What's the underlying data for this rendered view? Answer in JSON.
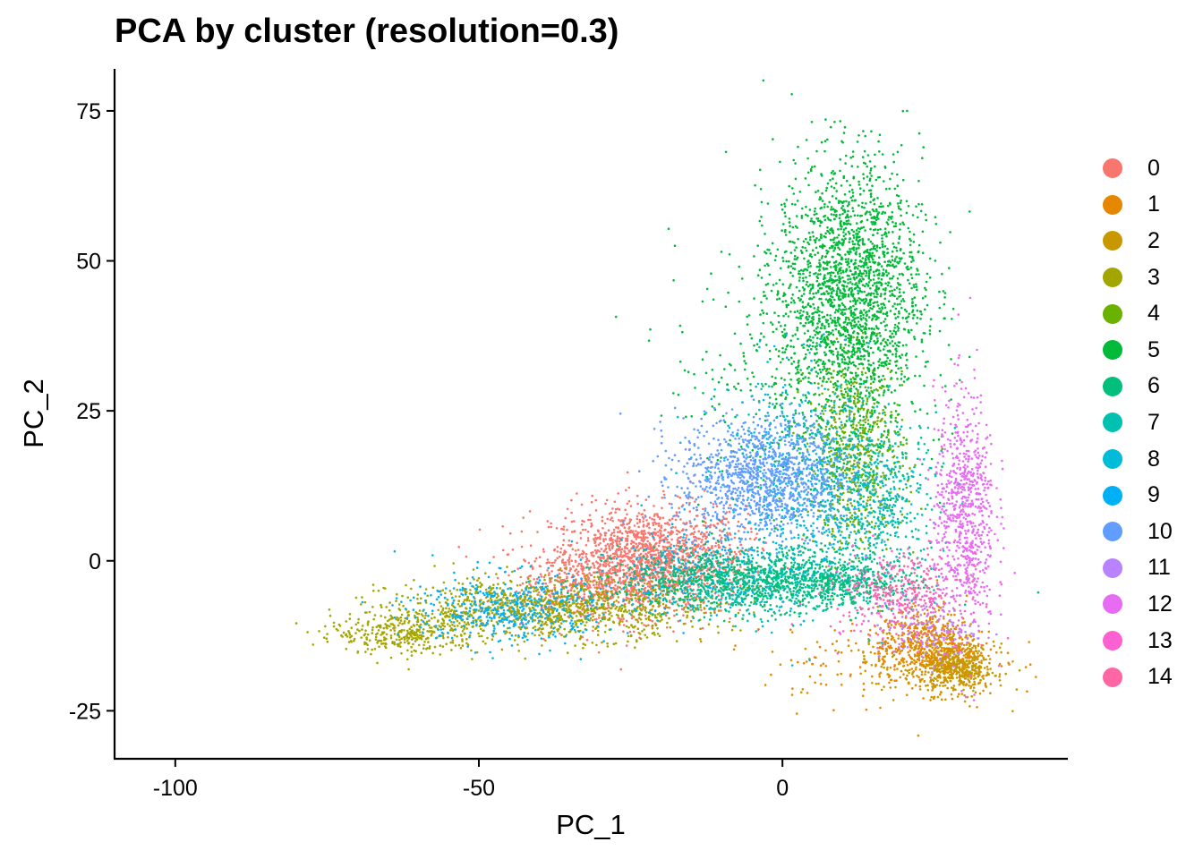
{
  "chart_data": {
    "type": "scatter",
    "title": "PCA by cluster (resolution=0.3)",
    "xlabel": "PC_1",
    "ylabel": "PC_2",
    "xlim": [
      -110,
      47
    ],
    "ylim": [
      -33,
      82
    ],
    "x_ticks": [
      -100,
      -50,
      0
    ],
    "x_tick_labels": [
      "-100",
      "-50",
      "0"
    ],
    "y_ticks": [
      -25,
      0,
      25,
      50,
      75
    ],
    "y_tick_labels": [
      "-25",
      "0",
      "25",
      "50",
      "75"
    ],
    "grid": false,
    "legend_position": "right",
    "series": [
      {
        "name": "0",
        "color": "#F8766D",
        "clusters": [
          {
            "center": [
              -22,
              0
            ],
            "sd": [
              8,
              4.5
            ],
            "n": 1700
          },
          {
            "center": [
              -33,
              -4
            ],
            "sd": [
              6,
              3
            ],
            "n": 300
          }
        ]
      },
      {
        "name": "1",
        "color": "#E58700",
        "clusters": [
          {
            "center": [
              24,
              -14
            ],
            "sd": [
              4,
              3
            ],
            "n": 500
          },
          {
            "center": [
              16,
              -17
            ],
            "sd": [
              10,
              4
            ],
            "n": 150
          }
        ]
      },
      {
        "name": "2",
        "color": "#C99800",
        "clusters": [
          {
            "center": [
              29,
              -18
            ],
            "sd": [
              3,
              2
            ],
            "n": 500
          },
          {
            "center": [
              20,
              -16
            ],
            "sd": [
              7,
              3
            ],
            "n": 120
          }
        ]
      },
      {
        "name": "3",
        "color": "#A3A500",
        "clusters": [
          {
            "center": [
              -38,
              -8
            ],
            "sd": [
              13,
              2.5
            ],
            "n": 1100
          },
          {
            "center": [
              -62,
              -12
            ],
            "sd": [
              6,
              1.8
            ],
            "n": 350
          }
        ]
      },
      {
        "name": "4",
        "color": "#6BB100",
        "clusters": [
          {
            "center": [
              12,
              18
            ],
            "sd": [
              4,
              8
            ],
            "n": 700
          }
        ]
      },
      {
        "name": "5",
        "color": "#00BA38",
        "clusters": [
          {
            "center": [
              11,
              45
            ],
            "sd": [
              6,
              11
            ],
            "n": 2100
          },
          {
            "center": [
              2,
              30
            ],
            "sd": [
              10,
              12
            ],
            "n": 350
          }
        ]
      },
      {
        "name": "6",
        "color": "#00BF7D",
        "clusters": [
          {
            "center": [
              -5,
              -3
            ],
            "sd": [
              11,
              2.5
            ],
            "n": 1200
          },
          {
            "center": [
              10,
              -4
            ],
            "sd": [
              6,
              2
            ],
            "n": 300
          }
        ]
      },
      {
        "name": "7",
        "color": "#00C0AF",
        "clusters": [
          {
            "center": [
              16,
              10
            ],
            "sd": [
              5,
              7
            ],
            "n": 500
          },
          {
            "center": [
              -8,
              -6
            ],
            "sd": [
              6,
              2
            ],
            "n": 150
          }
        ]
      },
      {
        "name": "8",
        "color": "#00BCD8",
        "clusters": [
          {
            "center": [
              4,
              12
            ],
            "sd": [
              7,
              10
            ],
            "n": 650
          }
        ]
      },
      {
        "name": "9",
        "color": "#00B0F6",
        "clusters": [
          {
            "center": [
              -45,
              -8
            ],
            "sd": [
              8,
              3
            ],
            "n": 450
          },
          {
            "center": [
              -15,
              -1
            ],
            "sd": [
              8,
              4
            ],
            "n": 150
          }
        ]
      },
      {
        "name": "10",
        "color": "#619CFF",
        "clusters": [
          {
            "center": [
              -3,
              14
            ],
            "sd": [
              7,
              5
            ],
            "n": 1200
          }
        ]
      },
      {
        "name": "11",
        "color": "#B983FF",
        "clusters": [
          {
            "center": [
              24,
              -11
            ],
            "sd": [
              4,
              3
            ],
            "n": 150
          }
        ]
      },
      {
        "name": "12",
        "color": "#E76BF3",
        "clusters": [
          {
            "center": [
              30,
              8
            ],
            "sd": [
              2.5,
              10
            ],
            "n": 750
          }
        ]
      },
      {
        "name": "13",
        "color": "#FD61D1",
        "clusters": [
          {
            "center": [
              18,
              -6
            ],
            "sd": [
              6,
              4
            ],
            "n": 150
          }
        ]
      },
      {
        "name": "14",
        "color": "#FF67A4",
        "clusters": [
          {
            "center": [
              20,
              -5
            ],
            "sd": [
              5,
              3
            ],
            "n": 200
          }
        ]
      }
    ]
  }
}
